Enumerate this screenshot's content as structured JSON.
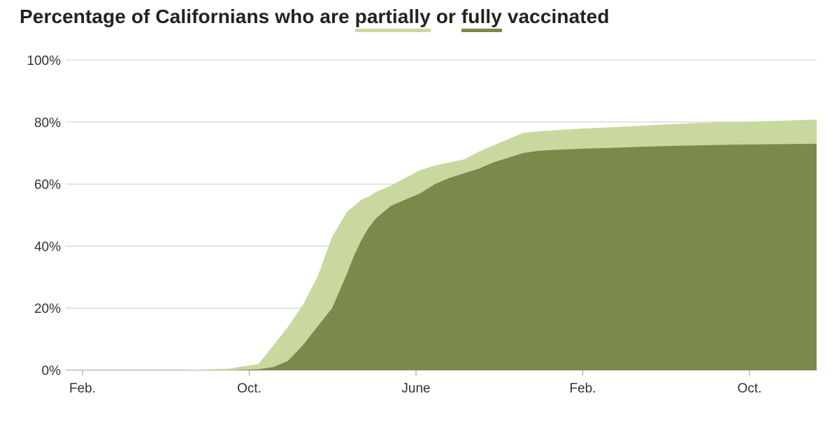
{
  "title": {
    "prefix": "Percentage of Californians who are ",
    "partial_word": "partially",
    "middle": " or ",
    "full_word": "fully",
    "suffix": " vaccinated"
  },
  "colors": {
    "partially": "#c9d89f",
    "fully": "#7b8a4b",
    "grid": "#cccccc",
    "text": "#333333"
  },
  "chart_data": {
    "type": "area",
    "title": "Percentage of Californians who are partially or fully vaccinated",
    "x_ticks": [
      "Feb.",
      "Oct.",
      "June",
      "Feb.",
      "Oct."
    ],
    "y_ticks": [
      "0%",
      "20%",
      "40%",
      "60%",
      "80%",
      "100%"
    ],
    "ylim": [
      0,
      100
    ],
    "grid": true,
    "x": [
      0,
      7,
      10,
      12,
      13,
      14,
      15,
      16,
      17,
      18,
      18.5,
      19,
      19.5,
      20,
      20.5,
      21,
      22,
      23,
      24,
      25,
      26,
      27,
      28,
      29,
      30,
      31,
      32,
      33,
      34,
      36,
      38,
      40,
      42,
      44,
      46,
      48,
      50
    ],
    "series": [
      {
        "name": "partially",
        "values": [
          0,
          0,
          0.5,
          2,
          8,
          14,
          21,
          30,
          43,
          51,
          53,
          55,
          56,
          57.5,
          58.5,
          59.5,
          62,
          64.5,
          66,
          67,
          68,
          70.5,
          72.5,
          74.5,
          76.5,
          77,
          77.3,
          77.6,
          77.9,
          78.3,
          78.8,
          79.3,
          79.7,
          80,
          80.2,
          80.5,
          80.8
        ]
      },
      {
        "name": "fully",
        "values": [
          0,
          0,
          0,
          0.3,
          1,
          3,
          8,
          14,
          20,
          31,
          37,
          42,
          46,
          49,
          51,
          53,
          55,
          57,
          60,
          62,
          63.5,
          65,
          67,
          68.5,
          70,
          70.7,
          71,
          71.2,
          71.4,
          71.7,
          72,
          72.3,
          72.5,
          72.7,
          72.8,
          72.9,
          73
        ]
      }
    ]
  }
}
